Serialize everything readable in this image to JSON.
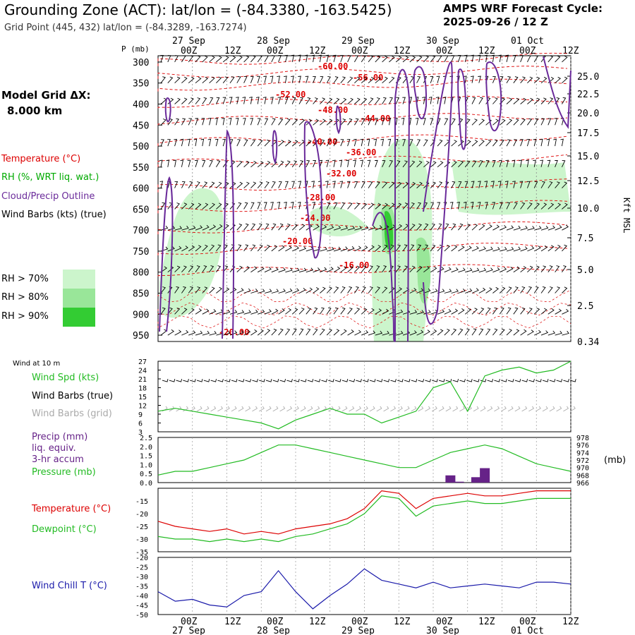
{
  "header": {
    "title": "Grounding Zone (ACT):  lat/lon = (-84.3380, -163.5425)",
    "subtitle": "Grid Point (445, 432) lat/lon = (-84.3289, -163.7274)",
    "cycle_line1": "AMPS WRF Forecast Cycle:",
    "cycle_line2": "2025-09-26 / 12  Z"
  },
  "model_grid": {
    "label": "Model Grid ΔX:",
    "value": "8.000 km"
  },
  "legend_upper": {
    "temperature": "Temperature (°C)",
    "rh": "RH (%, WRT liq. wat.)",
    "cloud": "Cloud/Precip Outline",
    "barbs": "Wind Barbs (kts) (true)",
    "rh70": "RH > 70%",
    "rh80": "RH > 80%",
    "rh90": "RH > 90%"
  },
  "legend_wind": {
    "header": "Wind at 10 m",
    "spd": "Wind Spd (kts)",
    "barbs_true": "Wind Barbs (true)",
    "barbs_grid": "Wind Barbs (grid)"
  },
  "legend_precip": {
    "l1": "Precip (mm)",
    "l2": "liq. equiv.",
    "l3": "3-hr accum",
    "pressure": "Pressure (mb)",
    "unit_right": "(mb)"
  },
  "legend_temp": {
    "temperature": "Temperature (°C)",
    "dewpoint": "Dewpoint (°C)"
  },
  "legend_chill": {
    "label": "Wind Chill T (°C)"
  },
  "colors": {
    "temperature": "#dd0000",
    "rh_label": "#00aa00",
    "cloud": "#6a2a9a",
    "rh70": "#ccf5cc",
    "rh80": "#99e699",
    "rh90": "#33cc33",
    "windspd": "#22bb22",
    "precip_bar": "#662288",
    "chill": "#1a1aaa",
    "barb_grid": "#aaaaaa"
  },
  "chart_data": [
    {
      "type": "cross-section",
      "axis_top_label": "P (mb)",
      "time_ticks": [
        "00Z",
        "12Z",
        "00Z",
        "12Z",
        "00Z",
        "12Z",
        "00Z",
        "12Z",
        "00Z",
        "12Z"
      ],
      "date_labels": [
        "27 Sep",
        "28 Sep",
        "29 Sep",
        "30 Sep",
        "01 Oct"
      ],
      "pressure_levels": [
        300,
        350,
        400,
        450,
        500,
        550,
        600,
        650,
        700,
        750,
        800,
        850,
        900,
        950
      ],
      "height_right_kft": [
        "25.0",
        "22.5",
        "20.0",
        "17.5",
        "15.0",
        "12.5",
        "10.0",
        "7.5",
        "5.0",
        "2.5",
        "0.34"
      ],
      "height_right_unit": "Kft MSL",
      "temperature_contour_labels": [
        "-60.00",
        "-56.00",
        "-52.00",
        "-48.00",
        "-44.00",
        "-40.00",
        "-36.00",
        "-32.00",
        "-28.00",
        "-24.00",
        "-20.00",
        "-16.00",
        "-20.00"
      ]
    },
    {
      "type": "line",
      "name": "10 m wind speed",
      "yticks": [
        3,
        6,
        9,
        12,
        15,
        18,
        21,
        24,
        27
      ],
      "x_hours": [
        0,
        6,
        12,
        18,
        24,
        30,
        36,
        42,
        48,
        54,
        60,
        66,
        72,
        78,
        84,
        90,
        96,
        102,
        108,
        114,
        120,
        126,
        132,
        138,
        144
      ],
      "values": [
        10,
        11,
        10,
        9,
        8,
        7,
        6,
        4,
        7,
        9,
        11,
        9,
        9,
        6,
        8,
        10,
        18,
        20,
        10,
        22,
        24,
        25,
        23,
        24,
        27
      ]
    },
    {
      "type": "bar+line",
      "name": "precip & pressure",
      "precip_yticks": [
        "2.5",
        "2.0",
        "1.5",
        "1.0",
        "0.5",
        "0.0"
      ],
      "pressure_yticks": [
        978,
        976,
        974,
        972,
        970,
        968,
        966
      ],
      "precip_hours": [
        102,
        105,
        111,
        114
      ],
      "precip_values": [
        0.4,
        0.05,
        0.3,
        0.8
      ],
      "pressure_hours": [
        0,
        6,
        12,
        18,
        24,
        30,
        36,
        42,
        48,
        54,
        60,
        66,
        72,
        78,
        84,
        90,
        96,
        102,
        108,
        114,
        120,
        126,
        132,
        138,
        144
      ],
      "pressure_values": [
        968,
        969,
        969,
        970,
        971,
        972,
        974,
        976,
        976,
        975,
        974,
        973,
        972,
        971,
        970,
        970,
        972,
        974,
        975,
        976,
        975,
        973,
        971,
        970,
        969
      ]
    },
    {
      "type": "line",
      "name": "temperature & dewpoint",
      "yticks": [
        -15,
        -20,
        -25,
        -30,
        -35
      ],
      "x_hours": [
        0,
        6,
        12,
        18,
        24,
        30,
        36,
        42,
        48,
        54,
        60,
        66,
        72,
        78,
        84,
        90,
        96,
        102,
        108,
        114,
        120,
        126,
        132,
        138,
        144
      ],
      "series": [
        {
          "name": "Temperature",
          "values": [
            -23,
            -25,
            -26,
            -27,
            -26,
            -28,
            -27,
            -28,
            -26,
            -25,
            -24,
            -22,
            -18,
            -11,
            -12,
            -18,
            -14,
            -13,
            -12,
            -13,
            -13,
            -12,
            -11,
            -11,
            -11
          ]
        },
        {
          "name": "Dewpoint",
          "values": [
            -29,
            -30,
            -30,
            -31,
            -30,
            -31,
            -30,
            -31,
            -29,
            -28,
            -26,
            -24,
            -20,
            -13,
            -14,
            -21,
            -17,
            -16,
            -15,
            -16,
            -16,
            -15,
            -14,
            -14,
            -14
          ]
        }
      ]
    },
    {
      "type": "line",
      "name": "wind chill",
      "yticks": [
        -20,
        -25,
        -30,
        -35,
        -40,
        -45,
        -50
      ],
      "x_hours": [
        0,
        6,
        12,
        18,
        24,
        30,
        36,
        42,
        48,
        54,
        60,
        66,
        72,
        78,
        84,
        90,
        96,
        102,
        108,
        114,
        120,
        126,
        132,
        138,
        144
      ],
      "values": [
        -38,
        -43,
        -42,
        -45,
        -46,
        -40,
        -38,
        -27,
        -38,
        -47,
        -40,
        -34,
        -26,
        -32,
        -34,
        -36,
        -33,
        -36,
        -35,
        -34,
        -35,
        -36,
        -33,
        -33,
        -34
      ]
    }
  ]
}
